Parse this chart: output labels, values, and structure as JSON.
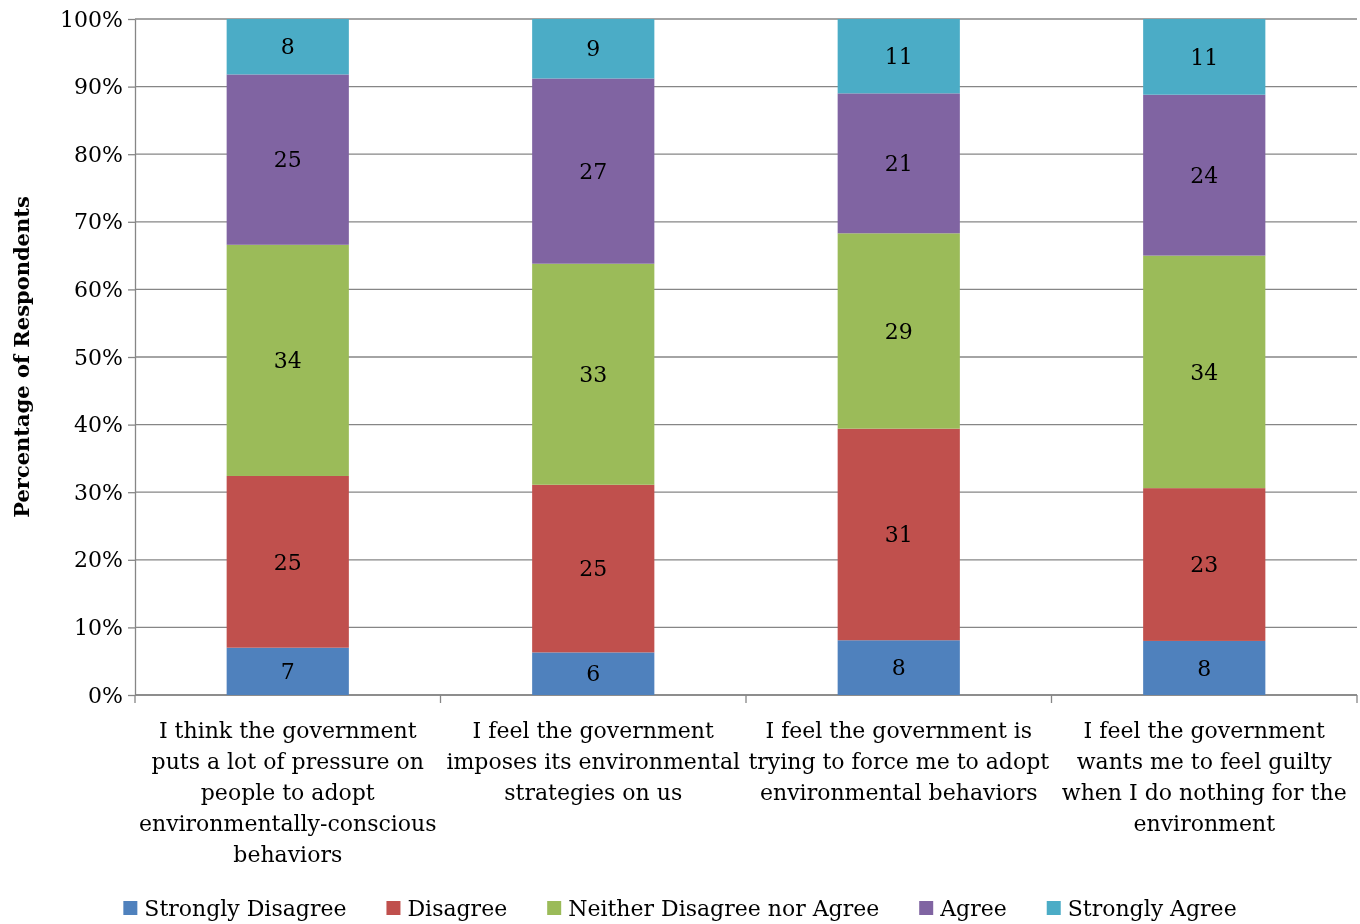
{
  "chart_data": {
    "type": "bar",
    "stacked": true,
    "ylabel": "Percentage of Respondents",
    "categories": [
      "I think the government puts a lot of pressure on people to adopt environmentally-conscious behaviors",
      "I feel the government imposes its environmental strategies on us",
      "I feel the government is trying to force me to adopt environmental behaviors",
      "I feel the government wants me to feel guilty when I do nothing for the environment"
    ],
    "series": [
      {
        "name": "Strongly Disagree",
        "color": "#4f81bd",
        "values": [
          7.0,
          6.3,
          8.1,
          8.0
        ],
        "value_labels": [
          "7",
          "6",
          "8",
          "8"
        ]
      },
      {
        "name": "Disagree",
        "color": "#c0504d",
        "values": [
          25.4,
          24.8,
          31.3,
          22.6
        ],
        "value_labels": [
          "25",
          "25",
          "31",
          "23"
        ]
      },
      {
        "name": "Neither Disagree nor Agree",
        "color": "#9bbb59",
        "values": [
          34.2,
          32.7,
          28.9,
          34.4
        ],
        "value_labels": [
          "34",
          "33",
          "29",
          "34"
        ]
      },
      {
        "name": "Agree",
        "color": "#8064a2",
        "values": [
          25.2,
          27.4,
          20.7,
          23.8
        ],
        "value_labels": [
          "25",
          "27",
          "21",
          "24"
        ]
      },
      {
        "name": "Strongly Agree",
        "color": "#4bacc6",
        "values": [
          8.2,
          8.8,
          11.0,
          11.2
        ],
        "value_labels": [
          "8",
          "9",
          "11",
          "11"
        ]
      }
    ],
    "ylim": [
      0,
      100
    ],
    "yticks": [
      {
        "value": 0,
        "label": "0%"
      },
      {
        "value": 10,
        "label": "10%"
      },
      {
        "value": 20,
        "label": "20%"
      },
      {
        "value": 30,
        "label": "30%"
      },
      {
        "value": 40,
        "label": "40%"
      },
      {
        "value": 50,
        "label": "50%"
      },
      {
        "value": 60,
        "label": "60%"
      },
      {
        "value": 70,
        "label": "70%"
      },
      {
        "value": 80,
        "label": "80%"
      },
      {
        "value": 90,
        "label": "90%"
      },
      {
        "value": 100,
        "label": "100%"
      }
    ],
    "grid": "y",
    "legend": "bottom"
  }
}
